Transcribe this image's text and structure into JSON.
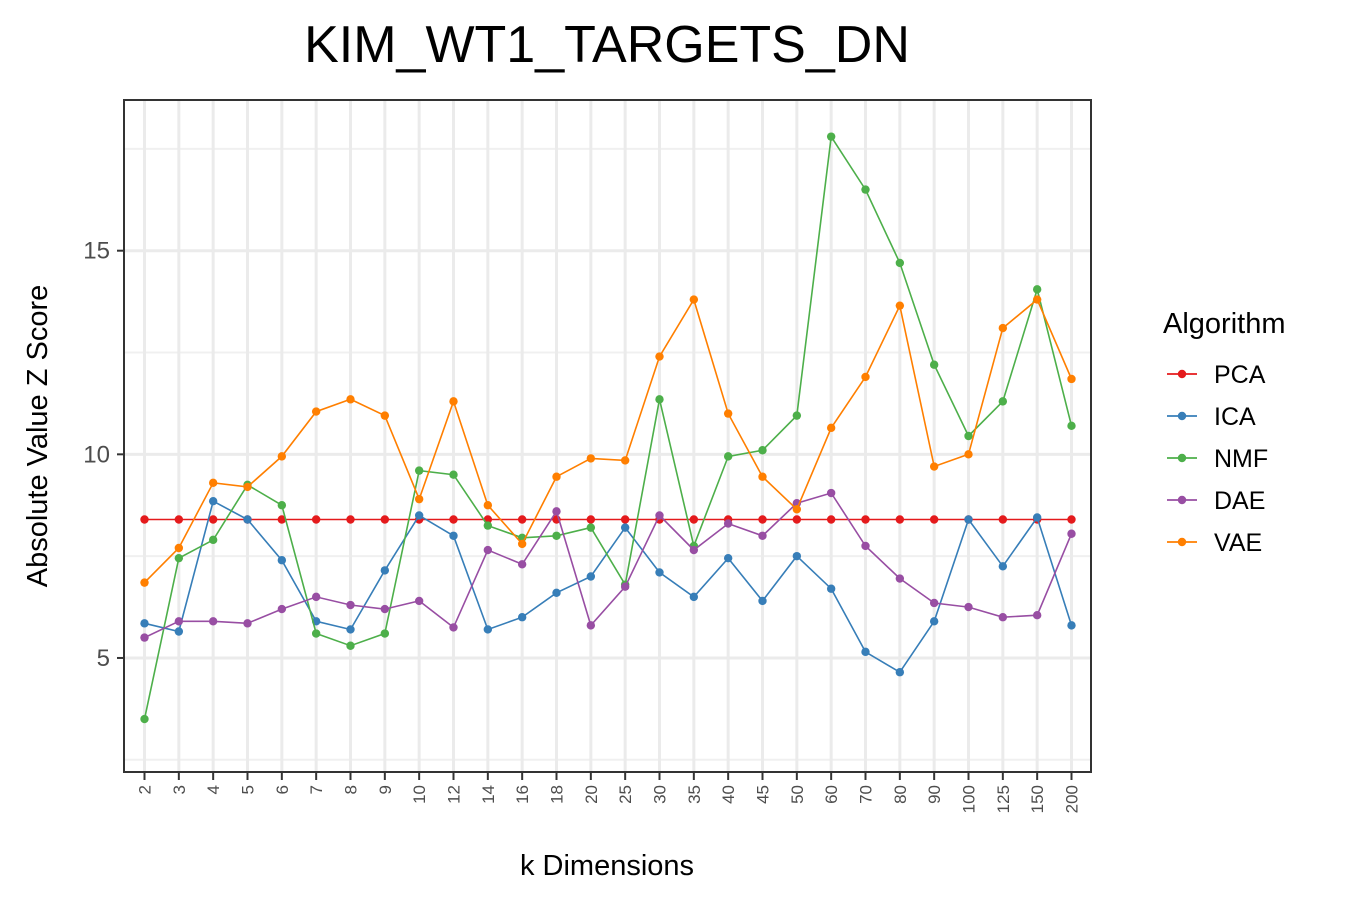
{
  "chart_data": {
    "type": "line",
    "title": "KIM_WT1_TARGETS_DN",
    "xlabel": "k Dimensions",
    "ylabel": "Absolute Value Z Score",
    "categories": [
      "2",
      "3",
      "4",
      "5",
      "6",
      "7",
      "8",
      "9",
      "10",
      "12",
      "14",
      "16",
      "18",
      "20",
      "25",
      "30",
      "35",
      "40",
      "45",
      "50",
      "60",
      "70",
      "80",
      "90",
      "100",
      "125",
      "150",
      "200"
    ],
    "yticks": [
      5,
      10,
      15
    ],
    "ylim": [
      2.2,
      18.7
    ],
    "grid": true,
    "legend": {
      "title": "Algorithm",
      "position": "right"
    },
    "series": [
      {
        "name": "PCA",
        "color": "#E41A1C",
        "values": [
          8.4,
          8.4,
          8.4,
          8.4,
          8.4,
          8.4,
          8.4,
          8.4,
          8.4,
          8.4,
          8.4,
          8.4,
          8.4,
          8.4,
          8.4,
          8.4,
          8.4,
          8.4,
          8.4,
          8.4,
          8.4,
          8.4,
          8.4,
          8.4,
          8.4,
          8.4,
          8.4,
          8.4
        ]
      },
      {
        "name": "ICA",
        "color": "#377EB8",
        "values": [
          5.85,
          5.65,
          8.85,
          8.4,
          7.4,
          5.9,
          5.7,
          7.15,
          8.5,
          8.0,
          5.7,
          6.0,
          6.6,
          7.0,
          8.2,
          7.1,
          6.5,
          7.45,
          6.4,
          7.5,
          6.7,
          5.15,
          4.65,
          5.9,
          8.4,
          7.25,
          8.45,
          5.8
        ]
      },
      {
        "name": "NMF",
        "color": "#4DAF4A",
        "values": [
          3.5,
          7.45,
          7.9,
          9.25,
          8.75,
          5.6,
          5.3,
          5.6,
          9.6,
          9.5,
          8.25,
          7.95,
          8.0,
          8.2,
          6.8,
          11.35,
          7.75,
          9.95,
          10.1,
          10.95,
          17.8,
          16.5,
          14.7,
          12.2,
          10.45,
          11.3,
          14.05,
          10.7
        ]
      },
      {
        "name": "DAE",
        "color": "#984EA3",
        "values": [
          5.5,
          5.9,
          5.9,
          5.85,
          6.2,
          6.5,
          6.3,
          6.2,
          6.4,
          5.75,
          7.65,
          7.3,
          8.6,
          5.8,
          6.75,
          8.5,
          7.65,
          8.3,
          8.0,
          8.8,
          9.05,
          7.75,
          6.95,
          6.35,
          6.25,
          6.0,
          6.05,
          8.05
        ]
      },
      {
        "name": "VAE",
        "color": "#FF7F00",
        "values": [
          6.85,
          7.7,
          9.3,
          9.2,
          9.95,
          11.05,
          11.35,
          10.95,
          8.9,
          11.3,
          8.75,
          7.8,
          9.45,
          9.9,
          9.85,
          12.4,
          13.8,
          11.0,
          9.45,
          8.65,
          10.65,
          11.9,
          13.65,
          9.7,
          10.0,
          13.1,
          13.8,
          11.85
        ]
      }
    ]
  }
}
